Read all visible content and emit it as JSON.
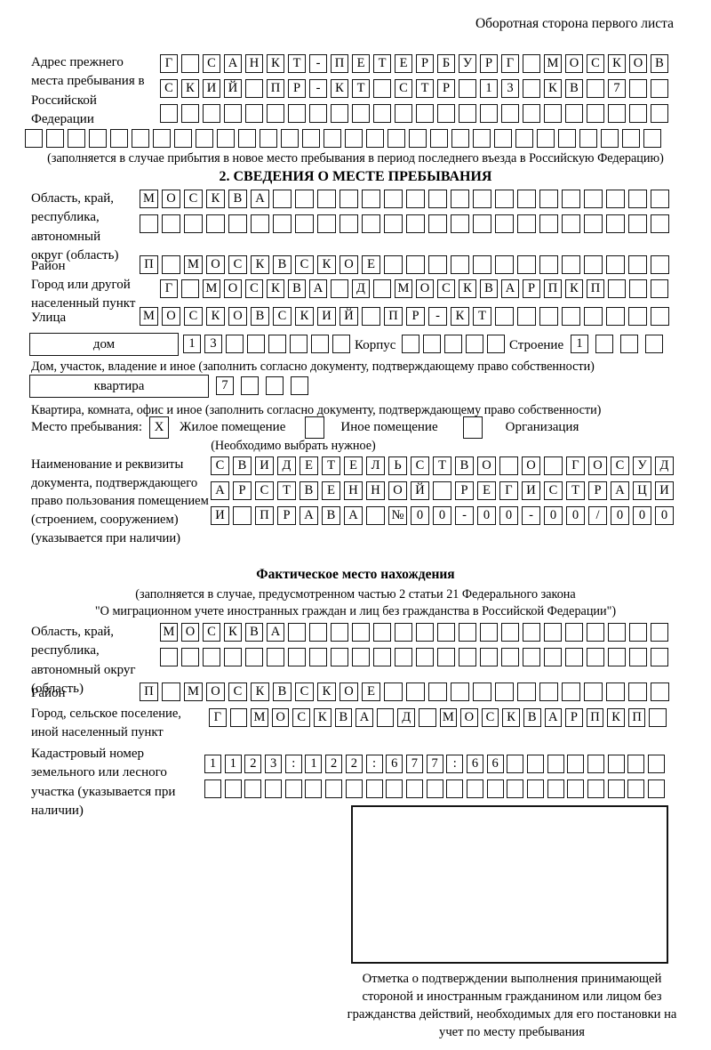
{
  "page": {
    "header_note": "Оборотная сторона первого листа"
  },
  "prev_address": {
    "label": "Адрес прежнего места пребывания в Российской Федерации",
    "rows": [
      {
        "text": "Г САНКТ-ПЕТЕРБУРГ МОСКОВ",
        "len": 24
      },
      {
        "text": "СКИЙ ПР-КТ СТР 13 КВ 7",
        "len": 24
      },
      {
        "text": "",
        "len": 24
      },
      {
        "text": "",
        "len": 30
      }
    ],
    "note": "(заполняется в случае прибытия в новое место пребывания в период последнего въезда в Российскую Федерацию)"
  },
  "section2": {
    "title": "2. СВЕДЕНИЯ О МЕСТЕ ПРЕБЫВАНИЯ",
    "region": {
      "label": "Область, край, республика, автономный округ (область)",
      "rows": [
        {
          "text": "МОСКВА",
          "len": 24
        },
        {
          "text": "",
          "len": 24
        }
      ]
    },
    "district": {
      "label": "Район",
      "row": {
        "text": "П МОСКВСКОЕ",
        "len": 24
      }
    },
    "city": {
      "label": "Город или другой населенный пункт",
      "row": {
        "text": "Г МОСКВА Д МОСКВАРПКП",
        "len": 24
      }
    },
    "street": {
      "label": "Улица",
      "row": {
        "text": "МОСКОВСКИЙ ПР-КТ",
        "len": 24
      }
    },
    "house": {
      "label": "дом",
      "cells": {
        "text": "13",
        "len": 8
      }
    },
    "korpus": {
      "label": "Корпус",
      "cells": {
        "text": "",
        "len": 5
      }
    },
    "stroenie": {
      "label": "Строение",
      "cells": {
        "text": "1",
        "len": 4
      }
    },
    "house_note": "Дом, участок, владение и иное (заполнить согласно документу, подтверждающему право собственности)",
    "apartment": {
      "label": "квартира",
      "cells": {
        "text": "7",
        "len": 4
      }
    },
    "apartment_note": "Квартира, комната, офис и иное (заполнить согласно документу, подтверждающему право собственности)",
    "stay_type": {
      "label": "Место пребывания:",
      "options": [
        {
          "mark": "X",
          "label": "Жилое помещение"
        },
        {
          "mark": "",
          "label": "Иное помещение"
        },
        {
          "mark": "",
          "label": "Организация"
        }
      ],
      "note": "(Необходимо выбрать нужное)"
    },
    "document": {
      "label": "Наименование и реквизиты документа, подтверждающего право пользования помещением (строением, сооружением) (указывается при наличии)",
      "rows": [
        {
          "text": "СВИДЕТЕЛЬСТВО О ГОСУД",
          "len": 21
        },
        {
          "text": "АРСТВЕННОЙ РЕГИСТРАЦИ",
          "len": 21
        },
        {
          "text": "И ПРАВА №00-00-00/000",
          "len": 21
        }
      ]
    }
  },
  "actual_location": {
    "title": "Фактическое место нахождения",
    "note_line1": "(заполняется в случае, предусмотренном частью 2 статьи 21 Федерального закона",
    "note_line2": "\"О миграционном учете иностранных граждан и лиц без гражданства в Российской Федерации\")",
    "region": {
      "label": "Область, край, республика, автономный округ (область)",
      "rows": [
        {
          "text": "МОСКВА",
          "len": 24
        },
        {
          "text": "",
          "len": 24
        }
      ]
    },
    "district": {
      "label": "Район",
      "row": {
        "text": "П МОСКВСКОЕ",
        "len": 24
      }
    },
    "city": {
      "label": "Город, сельское поселение, иной населенный пункт",
      "row": {
        "text": "Г МОСКВА Д МОСКВАРПКП",
        "len": 22
      }
    },
    "cadastral": {
      "label": "Кадастровый номер земельного или лесного участка (указывается при наличии)",
      "rows": [
        {
          "text": "1123:122:677:66",
          "len": 23
        },
        {
          "text": "",
          "len": 23
        }
      ]
    }
  },
  "confirmation": {
    "caption": "Отметка о подтверждении выполнения принимающей стороной и иностранным гражданином или лицом без гражданства действий, необходимых для его постановки на учет по месту пребывания"
  }
}
